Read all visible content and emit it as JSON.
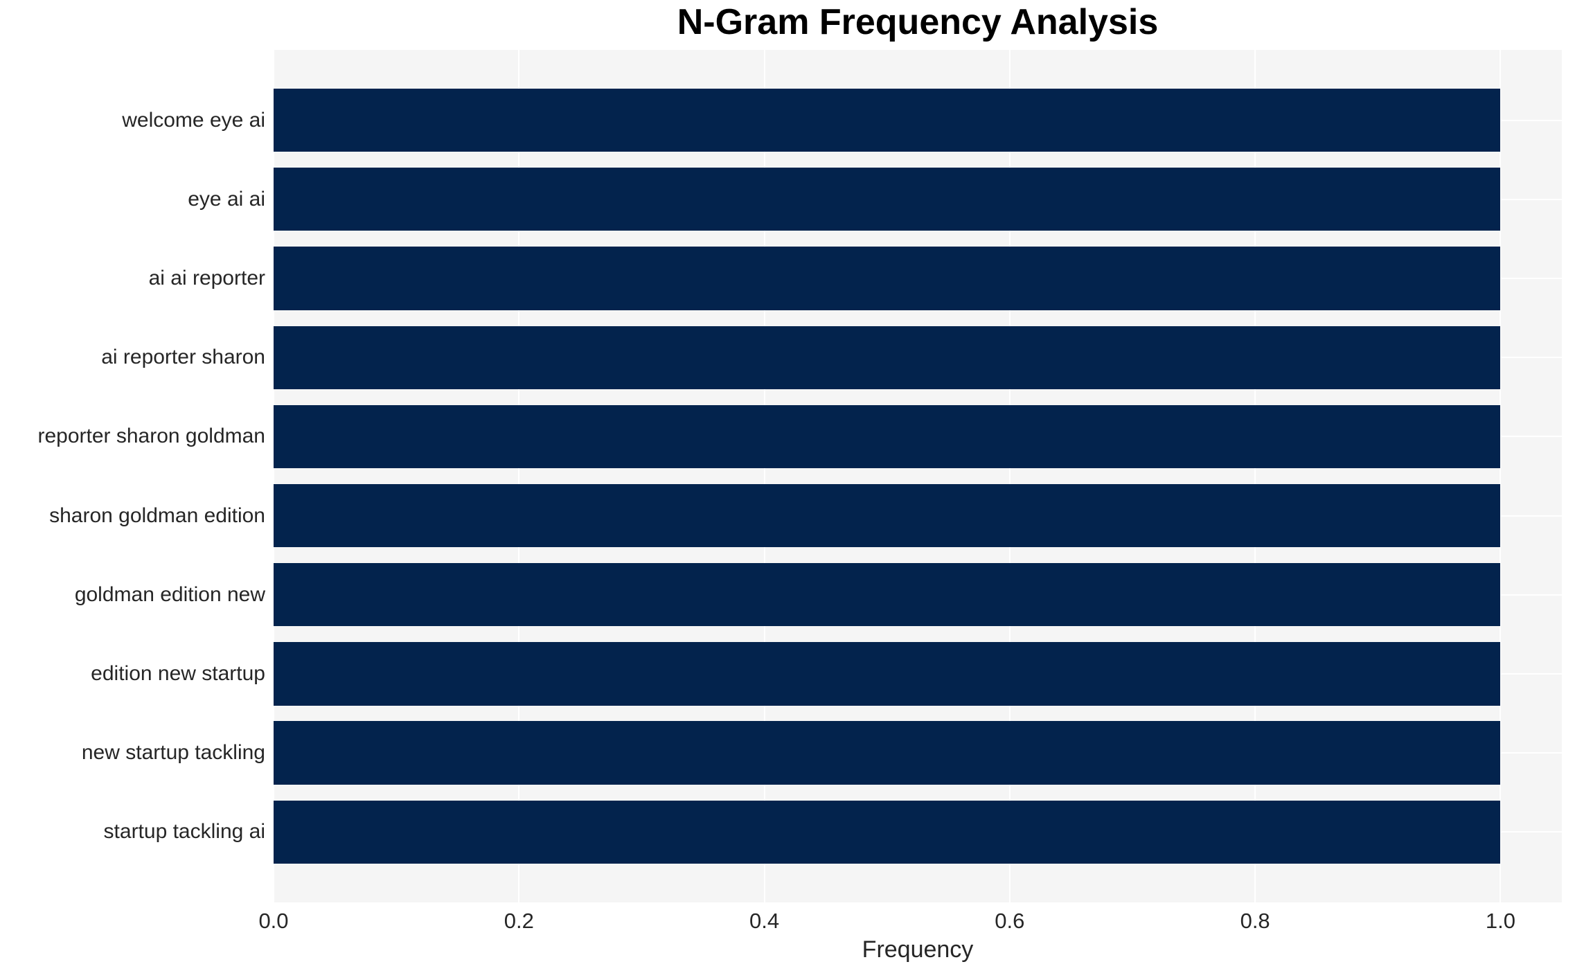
{
  "chart_data": {
    "type": "bar",
    "orientation": "horizontal",
    "title": "N-Gram Frequency Analysis",
    "categories": [
      "welcome eye ai",
      "eye ai ai",
      "ai ai reporter",
      "ai reporter sharon",
      "reporter sharon goldman",
      "sharon goldman edition",
      "goldman edition new",
      "edition new startup",
      "new startup tackling",
      "startup tackling ai"
    ],
    "values": [
      1.0,
      1.0,
      1.0,
      1.0,
      1.0,
      1.0,
      1.0,
      1.0,
      1.0,
      1.0
    ],
    "xlabel": "Frequency",
    "ylabel": "",
    "xlim": [
      0,
      1.05
    ],
    "xticks": [
      0.0,
      0.2,
      0.4,
      0.6,
      0.8,
      1.0
    ],
    "xtick_labels": [
      "0.0",
      "0.2",
      "0.4",
      "0.6",
      "0.8",
      "1.0"
    ],
    "grid": true,
    "legend": false,
    "colors": {
      "bar": "#03234d",
      "plot_background": "#f5f5f5",
      "gridline": "#ffffff",
      "tick_text": "#262626",
      "title_text": "#000000"
    }
  }
}
